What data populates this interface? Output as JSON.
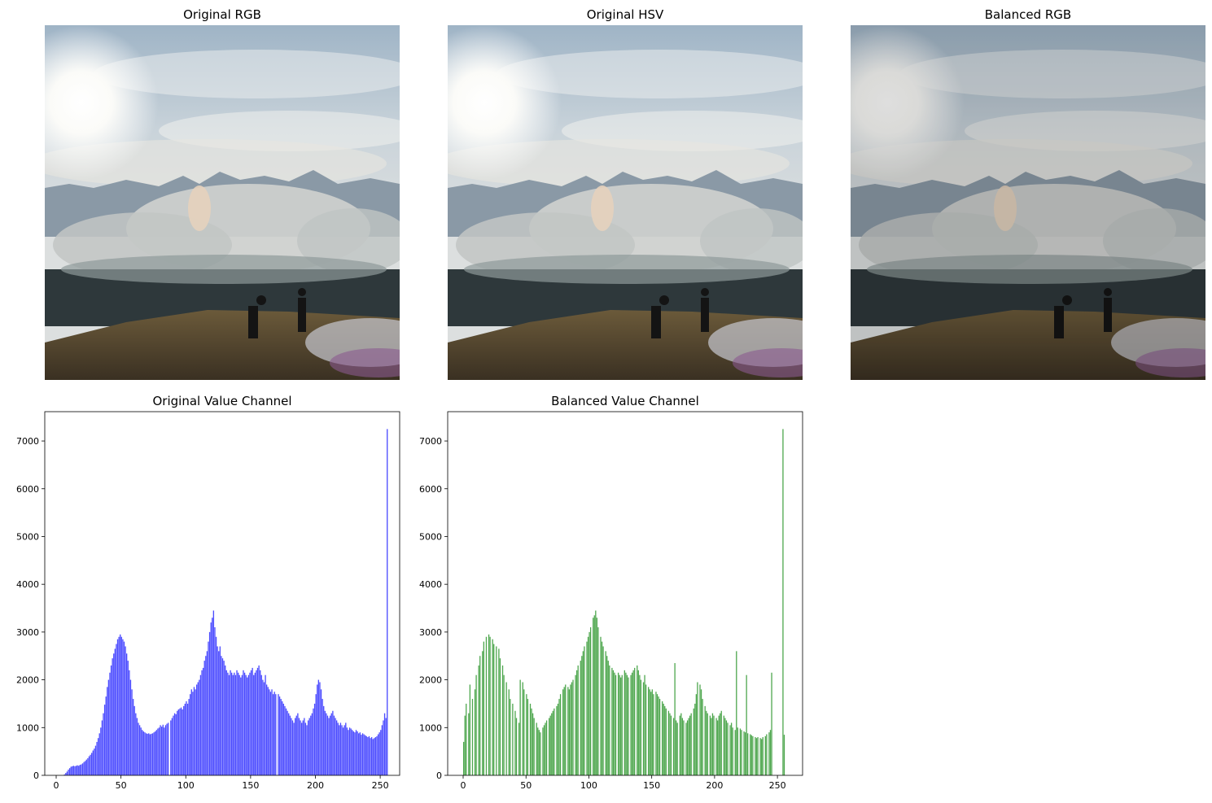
{
  "chart_data": [
    {
      "type": "image",
      "title": "Original RGB"
    },
    {
      "type": "image",
      "title": "Original HSV"
    },
    {
      "type": "image",
      "title": "Balanced RGB"
    },
    {
      "type": "histogram",
      "title": "Original Value Channel",
      "color": "#4d4dff",
      "bins": [
        0,
        1,
        2,
        3,
        4,
        5,
        6,
        7,
        8,
        9,
        10,
        11,
        12,
        13,
        14,
        15,
        16,
        17,
        18,
        19,
        20,
        21,
        22,
        23,
        24,
        25,
        26,
        27,
        28,
        29,
        30,
        31,
        32,
        33,
        34,
        35,
        36,
        37,
        38,
        39,
        40,
        41,
        42,
        43,
        44,
        45,
        46,
        47,
        48,
        49,
        50,
        51,
        52,
        53,
        54,
        55,
        56,
        57,
        58,
        59,
        60,
        61,
        62,
        63,
        64,
        65,
        66,
        67,
        68,
        69,
        70,
        71,
        72,
        73,
        74,
        75,
        76,
        77,
        78,
        79,
        80,
        81,
        82,
        83,
        84,
        85,
        86,
        87,
        88,
        89,
        90,
        91,
        92,
        93,
        94,
        95,
        96,
        97,
        98,
        99,
        100,
        101,
        102,
        103,
        104,
        105,
        106,
        107,
        108,
        109,
        110,
        111,
        112,
        113,
        114,
        115,
        116,
        117,
        118,
        119,
        120,
        121,
        122,
        123,
        124,
        125,
        126,
        127,
        128,
        129,
        130,
        131,
        132,
        133,
        134,
        135,
        136,
        137,
        138,
        139,
        140,
        141,
        142,
        143,
        144,
        145,
        146,
        147,
        148,
        149,
        150,
        151,
        152,
        153,
        154,
        155,
        156,
        157,
        158,
        159,
        160,
        161,
        162,
        163,
        164,
        165,
        166,
        167,
        168,
        169,
        170,
        171,
        172,
        173,
        174,
        175,
        176,
        177,
        178,
        179,
        180,
        181,
        182,
        183,
        184,
        185,
        186,
        187,
        188,
        189,
        190,
        191,
        192,
        193,
        194,
        195,
        196,
        197,
        198,
        199,
        200,
        201,
        202,
        203,
        204,
        205,
        206,
        207,
        208,
        209,
        210,
        211,
        212,
        213,
        214,
        215,
        216,
        217,
        218,
        219,
        220,
        221,
        222,
        223,
        224,
        225,
        226,
        227,
        228,
        229,
        230,
        231,
        232,
        233,
        234,
        235,
        236,
        237,
        238,
        239,
        240,
        241,
        242,
        243,
        244,
        245,
        246,
        247,
        248,
        249,
        250,
        251,
        252,
        253,
        254,
        255,
        256
      ],
      "values": [
        0,
        0,
        0,
        0,
        0,
        0,
        20,
        50,
        80,
        120,
        150,
        180,
        190,
        200,
        190,
        200,
        210,
        200,
        220,
        230,
        250,
        280,
        300,
        330,
        360,
        400,
        430,
        470,
        520,
        560,
        620,
        700,
        780,
        880,
        1000,
        1150,
        1300,
        1480,
        1650,
        1850,
        2000,
        2150,
        2300,
        2450,
        2550,
        2650,
        2750,
        2850,
        2900,
        2950,
        2900,
        2850,
        2800,
        2700,
        2550,
        2400,
        2200,
        2000,
        1800,
        1600,
        1450,
        1300,
        1200,
        1100,
        1050,
        1000,
        950,
        920,
        900,
        880,
        870,
        880,
        860,
        870,
        880,
        900,
        920,
        950,
        980,
        1000,
        1050,
        1020,
        1060,
        1000,
        1050,
        1080,
        1100,
        0,
        1150,
        1200,
        1250,
        1300,
        1280,
        1350,
        1380,
        1400,
        1420,
        1380,
        1450,
        1500,
        1550,
        1500,
        1600,
        1700,
        1800,
        1750,
        1850,
        1800,
        1900,
        1950,
        2000,
        2100,
        2200,
        2250,
        2400,
        2500,
        2600,
        2800,
        3000,
        3200,
        3300,
        3450,
        3100,
        2900,
        2700,
        2600,
        2700,
        2500,
        2450,
        2400,
        2300,
        2200,
        2150,
        2100,
        2200,
        2150,
        2100,
        2150,
        2100,
        2200,
        2150,
        2100,
        2050,
        2100,
        2200,
        2150,
        2100,
        2050,
        2100,
        2150,
        2200,
        2250,
        2100,
        2150,
        2200,
        2250,
        2300,
        2200,
        2100,
        2000,
        1950,
        2100,
        1900,
        1850,
        1800,
        1750,
        1800,
        1700,
        1750,
        1700,
        0,
        1700,
        1650,
        1600,
        1550,
        1500,
        1450,
        1400,
        1350,
        1300,
        1250,
        1200,
        1150,
        1100,
        1200,
        1250,
        1300,
        1200,
        1150,
        1100,
        1150,
        1200,
        1100,
        1050,
        1150,
        1200,
        1250,
        1300,
        1400,
        1500,
        1700,
        1900,
        2000,
        1950,
        1800,
        1600,
        1450,
        1350,
        1300,
        1250,
        1200,
        1250,
        1300,
        1350,
        1250,
        1200,
        1150,
        1100,
        1050,
        1100,
        1050,
        1000,
        1050,
        1100,
        1000,
        950,
        1000,
        980,
        950,
        920,
        900,
        950,
        920,
        880,
        900,
        850,
        880,
        860,
        840,
        820,
        800,
        820,
        780,
        800,
        760,
        780,
        800,
        820,
        860,
        900,
        950,
        1050,
        1150,
        1300,
        1200,
        7250
      ],
      "xlim": [
        -8.8,
        265
      ],
      "ylim": [
        0,
        7614
      ],
      "xticks": [
        0,
        50,
        100,
        150,
        200,
        250
      ],
      "yticks": [
        0,
        1000,
        2000,
        3000,
        4000,
        5000,
        6000,
        7000
      ]
    },
    {
      "type": "histogram",
      "title": "Balanced Value Channel",
      "color": "#4da64d",
      "bins": [
        0,
        1,
        2,
        3,
        4,
        5,
        6,
        7,
        8,
        9,
        10,
        11,
        12,
        13,
        14,
        15,
        16,
        17,
        18,
        19,
        20,
        21,
        22,
        23,
        24,
        25,
        26,
        27,
        28,
        29,
        30,
        31,
        32,
        33,
        34,
        35,
        36,
        37,
        38,
        39,
        40,
        41,
        42,
        43,
        44,
        45,
        46,
        47,
        48,
        49,
        50,
        51,
        52,
        53,
        54,
        55,
        56,
        57,
        58,
        59,
        60,
        61,
        62,
        63,
        64,
        65,
        66,
        67,
        68,
        69,
        70,
        71,
        72,
        73,
        74,
        75,
        76,
        77,
        78,
        79,
        80,
        81,
        82,
        83,
        84,
        85,
        86,
        87,
        88,
        89,
        90,
        91,
        92,
        93,
        94,
        95,
        96,
        97,
        98,
        99,
        100,
        101,
        102,
        103,
        104,
        105,
        106,
        107,
        108,
        109,
        110,
        111,
        112,
        113,
        114,
        115,
        116,
        117,
        118,
        119,
        120,
        121,
        122,
        123,
        124,
        125,
        126,
        127,
        128,
        129,
        130,
        131,
        132,
        133,
        134,
        135,
        136,
        137,
        138,
        139,
        140,
        141,
        142,
        143,
        144,
        145,
        146,
        147,
        148,
        149,
        150,
        151,
        152,
        153,
        154,
        155,
        156,
        157,
        158,
        159,
        160,
        161,
        162,
        163,
        164,
        165,
        166,
        167,
        168,
        169,
        170,
        171,
        172,
        173,
        174,
        175,
        176,
        177,
        178,
        179,
        180,
        181,
        182,
        183,
        184,
        185,
        186,
        187,
        188,
        189,
        190,
        191,
        192,
        193,
        194,
        195,
        196,
        197,
        198,
        199,
        200,
        201,
        202,
        203,
        204,
        205,
        206,
        207,
        208,
        209,
        210,
        211,
        212,
        213,
        214,
        215,
        216,
        217,
        218,
        219,
        220,
        221,
        222,
        223,
        224,
        225,
        226,
        227,
        228,
        229,
        230,
        231,
        232,
        233,
        234,
        235,
        236,
        237,
        238,
        239,
        240,
        241,
        242,
        243,
        244,
        245,
        246,
        247,
        248,
        249,
        250,
        251,
        252,
        253,
        254,
        255,
        256
      ],
      "values": [
        700,
        1250,
        1500,
        0,
        1300,
        1900,
        0,
        1600,
        0,
        1800,
        2100,
        0,
        2300,
        2500,
        0,
        2600,
        2800,
        0,
        2900,
        0,
        2950,
        2900,
        0,
        2850,
        2750,
        0,
        2700,
        0,
        2650,
        2450,
        0,
        2300,
        2100,
        0,
        1950,
        0,
        1800,
        1600,
        0,
        1500,
        0,
        1350,
        1200,
        0,
        1100,
        2000,
        0,
        1950,
        1800,
        0,
        1700,
        1600,
        0,
        1500,
        1400,
        1300,
        1200,
        0,
        1100,
        1000,
        950,
        900,
        0,
        1000,
        1050,
        1100,
        1150,
        0,
        1200,
        1250,
        1300,
        1350,
        1400,
        0,
        1450,
        1500,
        1600,
        1700,
        0,
        1800,
        1850,
        1900,
        0,
        1850,
        1800,
        1900,
        1950,
        2000,
        0,
        2100,
        2200,
        2300,
        0,
        2400,
        2500,
        2600,
        2700,
        0,
        2800,
        2900,
        3000,
        3100,
        0,
        3300,
        3350,
        3450,
        3300,
        3100,
        0,
        2900,
        2800,
        2700,
        0,
        2600,
        2500,
        2400,
        2300,
        0,
        2250,
        2200,
        2150,
        2100,
        0,
        2150,
        2100,
        2050,
        2100,
        0,
        2200,
        2150,
        2100,
        2050,
        0,
        2100,
        2150,
        2200,
        2250,
        0,
        2300,
        2200,
        2100,
        2000,
        0,
        1950,
        2100,
        1900,
        0,
        1850,
        1800,
        1750,
        1800,
        1700,
        0,
        1750,
        1700,
        1650,
        1600,
        0,
        1550,
        1500,
        1450,
        1400,
        0,
        1350,
        1300,
        1250,
        0,
        1200,
        2350,
        1150,
        1100,
        0,
        1250,
        1300,
        1200,
        1150,
        0,
        1100,
        1150,
        1200,
        1250,
        1300,
        0,
        1400,
        1500,
        1700,
        1950,
        0,
        1900,
        1800,
        1600,
        0,
        1450,
        1350,
        1300,
        0,
        1250,
        1200,
        1300,
        1250,
        0,
        1200,
        1150,
        1250,
        1300,
        1350,
        0,
        1250,
        1200,
        1150,
        1100,
        0,
        1050,
        1100,
        1000,
        0,
        950,
        2600,
        1000,
        0,
        980,
        950,
        0,
        920,
        900,
        2100,
        880,
        0,
        860,
        840,
        820,
        0,
        800,
        780,
        800,
        0,
        780,
        760,
        800,
        0,
        820,
        860,
        0,
        900,
        950,
        2150,
        0,
        0,
        0,
        0,
        0,
        0,
        0,
        0,
        7250,
        850
      ],
      "xlim": [
        -12.3,
        270
      ],
      "ylim": [
        0,
        7614
      ],
      "xticks": [
        0,
        50,
        100,
        150,
        200,
        250
      ],
      "yticks": [
        0,
        1000,
        2000,
        3000,
        4000,
        5000,
        6000,
        7000
      ]
    }
  ]
}
